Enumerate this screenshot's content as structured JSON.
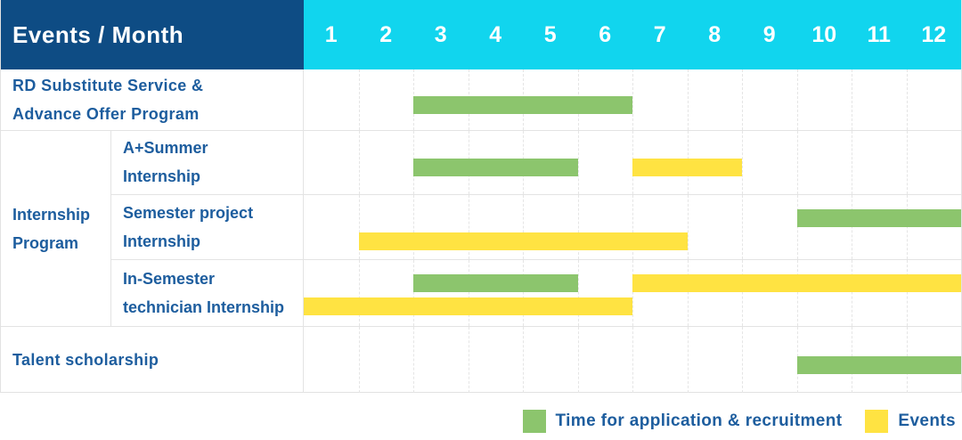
{
  "header": {
    "title": "Events / Month",
    "months": [
      "1",
      "2",
      "3",
      "4",
      "5",
      "6",
      "7",
      "8",
      "9",
      "10",
      "11",
      "12"
    ]
  },
  "colors": {
    "navy": "#0e4c84",
    "cyan": "#11d5ee",
    "green": "#8cc56d",
    "yellow": "#ffe342",
    "text_blue": "#1d5d9e",
    "grid": "#e3e3e3"
  },
  "legend": {
    "items": [
      {
        "swatch": "green",
        "label": "Time for application & recruitment"
      },
      {
        "swatch": "yellow",
        "label": "Events"
      }
    ]
  },
  "chart_data": {
    "type": "gantt",
    "title": "Events / Month",
    "x_axis": {
      "unit": "month",
      "range": [
        1,
        12
      ],
      "ticks": [
        "1",
        "2",
        "3",
        "4",
        "5",
        "6",
        "7",
        "8",
        "9",
        "10",
        "11",
        "12"
      ]
    },
    "bar_colors_meaning": {
      "green": "Time for application & recruitment",
      "yellow": "Events"
    },
    "rows": [
      {
        "label": "RD Substitute Service & Advance Offer Program",
        "label_lines": [
          "RD Substitute Service &",
          "Advance Offer Program"
        ],
        "lines": [
          [
            {
              "color": "green",
              "start": 3,
              "end": 6
            }
          ]
        ]
      },
      {
        "label": "Internship Program",
        "label_lines": [
          "Internship",
          "Program"
        ],
        "children": [
          {
            "label": "A+Summer Internship",
            "label_lines": [
              "A+Summer",
              "Internship"
            ],
            "lines": [
              [
                {
                  "color": "green",
                  "start": 3,
                  "end": 5
                },
                {
                  "color": "yellow",
                  "start": 7,
                  "end": 8
                }
              ]
            ]
          },
          {
            "label": "Semester project Internship",
            "label_lines": [
              "Semester project",
              "Internship"
            ],
            "lines": [
              [
                {
                  "color": "green",
                  "start": 10,
                  "end": 12
                }
              ],
              [
                {
                  "color": "yellow",
                  "start": 2,
                  "end": 7
                }
              ]
            ]
          },
          {
            "label": "In-Semester technician Internship",
            "label_lines": [
              "In-Semester",
              "technician Internship"
            ],
            "lines": [
              [
                {
                  "color": "green",
                  "start": 3,
                  "end": 5
                },
                {
                  "color": "yellow",
                  "start": 7,
                  "end": 12
                }
              ],
              [
                {
                  "color": "yellow",
                  "start": 1,
                  "end": 6
                }
              ]
            ]
          }
        ]
      },
      {
        "label": "Talent scholarship",
        "label_lines": [
          "Talent scholarship"
        ],
        "lines": [
          [
            {
              "color": "green",
              "start": 10,
              "end": 12
            }
          ]
        ]
      }
    ]
  }
}
